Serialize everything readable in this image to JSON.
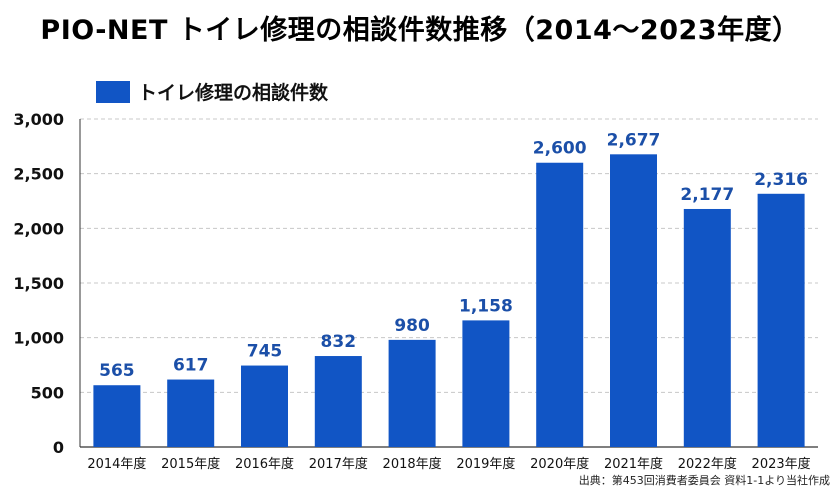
{
  "chart_data": {
    "type": "bar",
    "title": "PIO-NET トイレ修理の相談件数推移（2014～2023年度）",
    "legend": [
      "トイレ修理の相談件数"
    ],
    "legend_placement": "top-left",
    "categories": [
      "2014年度",
      "2015年度",
      "2016年度",
      "2017年度",
      "2018年度",
      "2019年度",
      "2020年度",
      "2021年度",
      "2022年度",
      "2023年度"
    ],
    "series": [
      {
        "name": "トイレ修理の相談件数",
        "values": [
          565,
          617,
          745,
          832,
          980,
          1158,
          2600,
          2677,
          2177,
          2316
        ]
      }
    ],
    "data_labels": [
      "565",
      "617",
      "745",
      "832",
      "980",
      "1,158",
      "2,600",
      "2,677",
      "2,177",
      "2,316"
    ],
    "ylim": [
      0,
      3000
    ],
    "yticks": [
      0,
      500,
      1000,
      1500,
      2000,
      2500,
      3000
    ],
    "ytick_labels": [
      "0",
      "500",
      "1,000",
      "1,500",
      "2,000",
      "2,500",
      "3,000"
    ],
    "grid": "horizontal-dashed",
    "xlabel": "",
    "ylabel": ""
  },
  "colors": {
    "bar": "#1155c5",
    "data_label": "#1b4fa8",
    "grid": "#c8c8c8",
    "axis": "#333333"
  },
  "source": "出典：第453回消費者委員会 資料1-1より当社作成"
}
